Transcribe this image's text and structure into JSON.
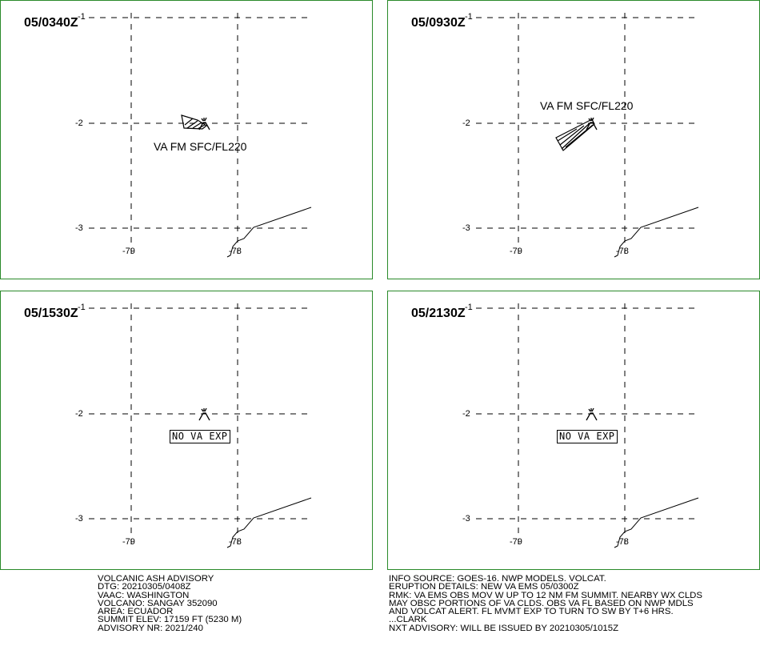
{
  "panels": [
    {
      "time": "05/0340Z",
      "label": "VA FM SFC/FL220",
      "lat_ticks": [
        "-1",
        "-2",
        "-3"
      ],
      "lon_ticks": [
        "-79",
        "-78"
      ]
    },
    {
      "time": "05/0930Z",
      "label": "VA FM SFC/FL220",
      "lat_ticks": [
        "-1",
        "-2",
        "-3"
      ],
      "lon_ticks": [
        "-79",
        "-78"
      ]
    },
    {
      "time": "05/1530Z",
      "label": "NO VA EXP",
      "lat_ticks": [
        "-1",
        "-2",
        "-3"
      ],
      "lon_ticks": [
        "-79",
        "-78"
      ]
    },
    {
      "time": "05/2130Z",
      "label": "NO VA EXP",
      "lat_ticks": [
        "-1",
        "-2",
        "-3"
      ],
      "lon_ticks": [
        "-79",
        "-78"
      ]
    }
  ],
  "advisory": {
    "lines": [
      "VOLCANIC ASH ADVISORY",
      "DTG: 20210305/0408Z",
      "VAAC: WASHINGTON",
      "VOLCANO: SANGAY 352090",
      "AREA: ECUADOR",
      "SUMMIT ELEV: 17159 FT (5230 M)",
      "ADVISORY NR: 2021/240"
    ]
  },
  "remarks": {
    "lines": [
      "INFO SOURCE: GOES-16. NWP MODELS. VOLCAT.",
      "ERUPTION DETAILS: NEW VA EMS 05/0300Z",
      "RMK: VA EMS OBS MOV W UP TO 12 NM FM SUMMIT. NEARBY WX CLDS",
      "MAY OBSC PORTIONS OF VA CLDS. OBS VA FL BASED ON NWP MDLS",
      "AND VOLCAT ALERT. FL MVMT EXP TO TURN TO SW BY T+6 HRS.",
      "...CLARK",
      "NXT ADVISORY: WILL BE ISSUED BY 20210305/1015Z"
    ]
  },
  "colors": {
    "panel_border": "#2a8a2a",
    "ink": "#000000"
  }
}
